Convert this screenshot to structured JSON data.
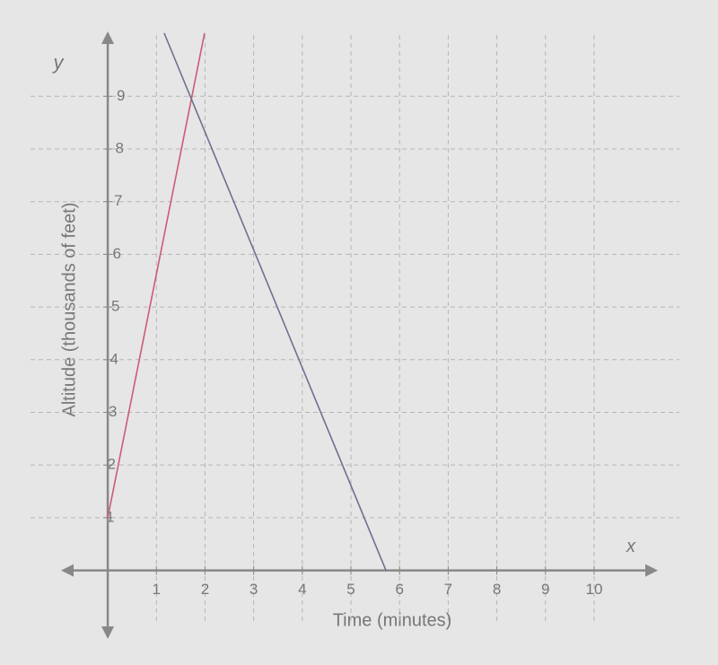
{
  "chart_data": {
    "type": "line",
    "x_label": "Time (minutes)",
    "y_label": "Altitude (thousands of feet)",
    "x_axis_letter": "x",
    "y_axis_letter": "y",
    "series": [
      {
        "color": "#cc5b76",
        "x": [
          0,
          1.99
        ],
        "values": [
          1,
          10.2
        ]
      },
      {
        "color": "#6d7191",
        "x": [
          1.16,
          5.72
        ],
        "values": [
          10.2,
          0
        ]
      }
    ],
    "xlim": [
      -0.85,
      11.2
    ],
    "ylim": [
      -1.2,
      10.3
    ],
    "xticks": [
      1,
      2,
      3,
      4,
      5,
      6,
      7,
      8,
      9,
      10
    ],
    "yticks": [
      1,
      2,
      3,
      4,
      5,
      6,
      7,
      8,
      9
    ],
    "grid": true
  }
}
